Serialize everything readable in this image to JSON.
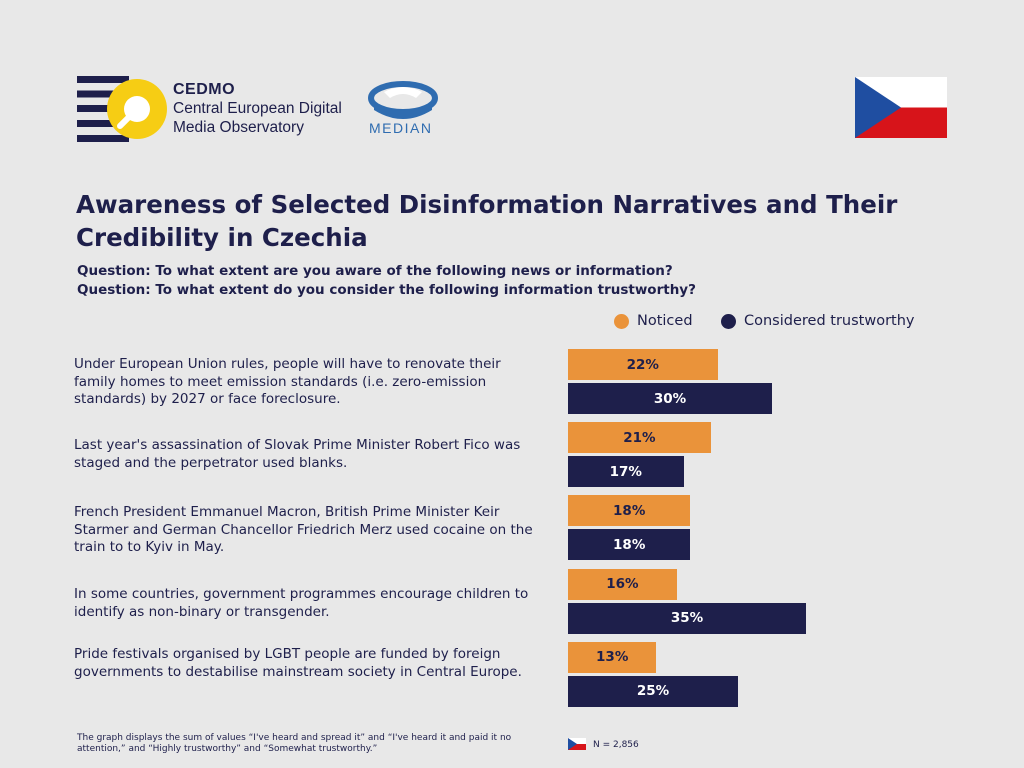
{
  "header": {
    "cedmo_brand": "CEDMO",
    "cedmo_line1": "Central European Digital",
    "cedmo_line2": "Media Observatory",
    "median_brand": "MEDIAN"
  },
  "title": "Awareness of Selected Disinformation Narratives and Their Credibility in Czechia",
  "questions": [
    "Question: To what extent are you aware of the following news or information?",
    "Question: To what extent do you consider the following information trustworthy?"
  ],
  "colors": {
    "noticed": "#ea933a",
    "trustworthy": "#1e1f4b",
    "flag_blue": "#1f4ea1",
    "flag_red": "#d7141a"
  },
  "chart_data": {
    "type": "bar",
    "orientation": "horizontal",
    "legend_placement": "top-right",
    "grid": false,
    "xlim": [
      0,
      100
    ],
    "categories": [
      "Under European Union rules, people will have to renovate their family homes to meet emission standards (i.e. zero-emission standards) by 2027 or face foreclosure.",
      "Last year's assassination of Slovak Prime Minister Robert Fico was staged and the perpetrator used blanks.",
      "French President Emmanuel Macron, British Prime Minister Keir Starmer and German Chancellor Friedrich Merz used cocaine on the train to to Kyiv in May.",
      "In some countries, government programmes encourage children to identify as non-binary or transgender.",
      "Pride festivals organised by LGBT people are funded by foreign governments to destabilise mainstream society in Central Europe."
    ],
    "series": [
      {
        "name": "Noticed",
        "values": [
          22,
          21,
          18,
          16,
          13
        ],
        "labels": [
          "22%",
          "21%",
          "18%",
          "16%",
          "13%"
        ]
      },
      {
        "name": "Considered trustworthy",
        "values": [
          30,
          17,
          18,
          35,
          25
        ],
        "labels": [
          "30%",
          "17%",
          "18%",
          "35%",
          "25%"
        ]
      }
    ]
  },
  "footnote": "The graph displays the sum of values “I've heard and spread it” and “I've heard it and paid it no attention,” and “Highly trustworthy” and “Somewhat trustworthy.”",
  "sample": "N = 2,856"
}
